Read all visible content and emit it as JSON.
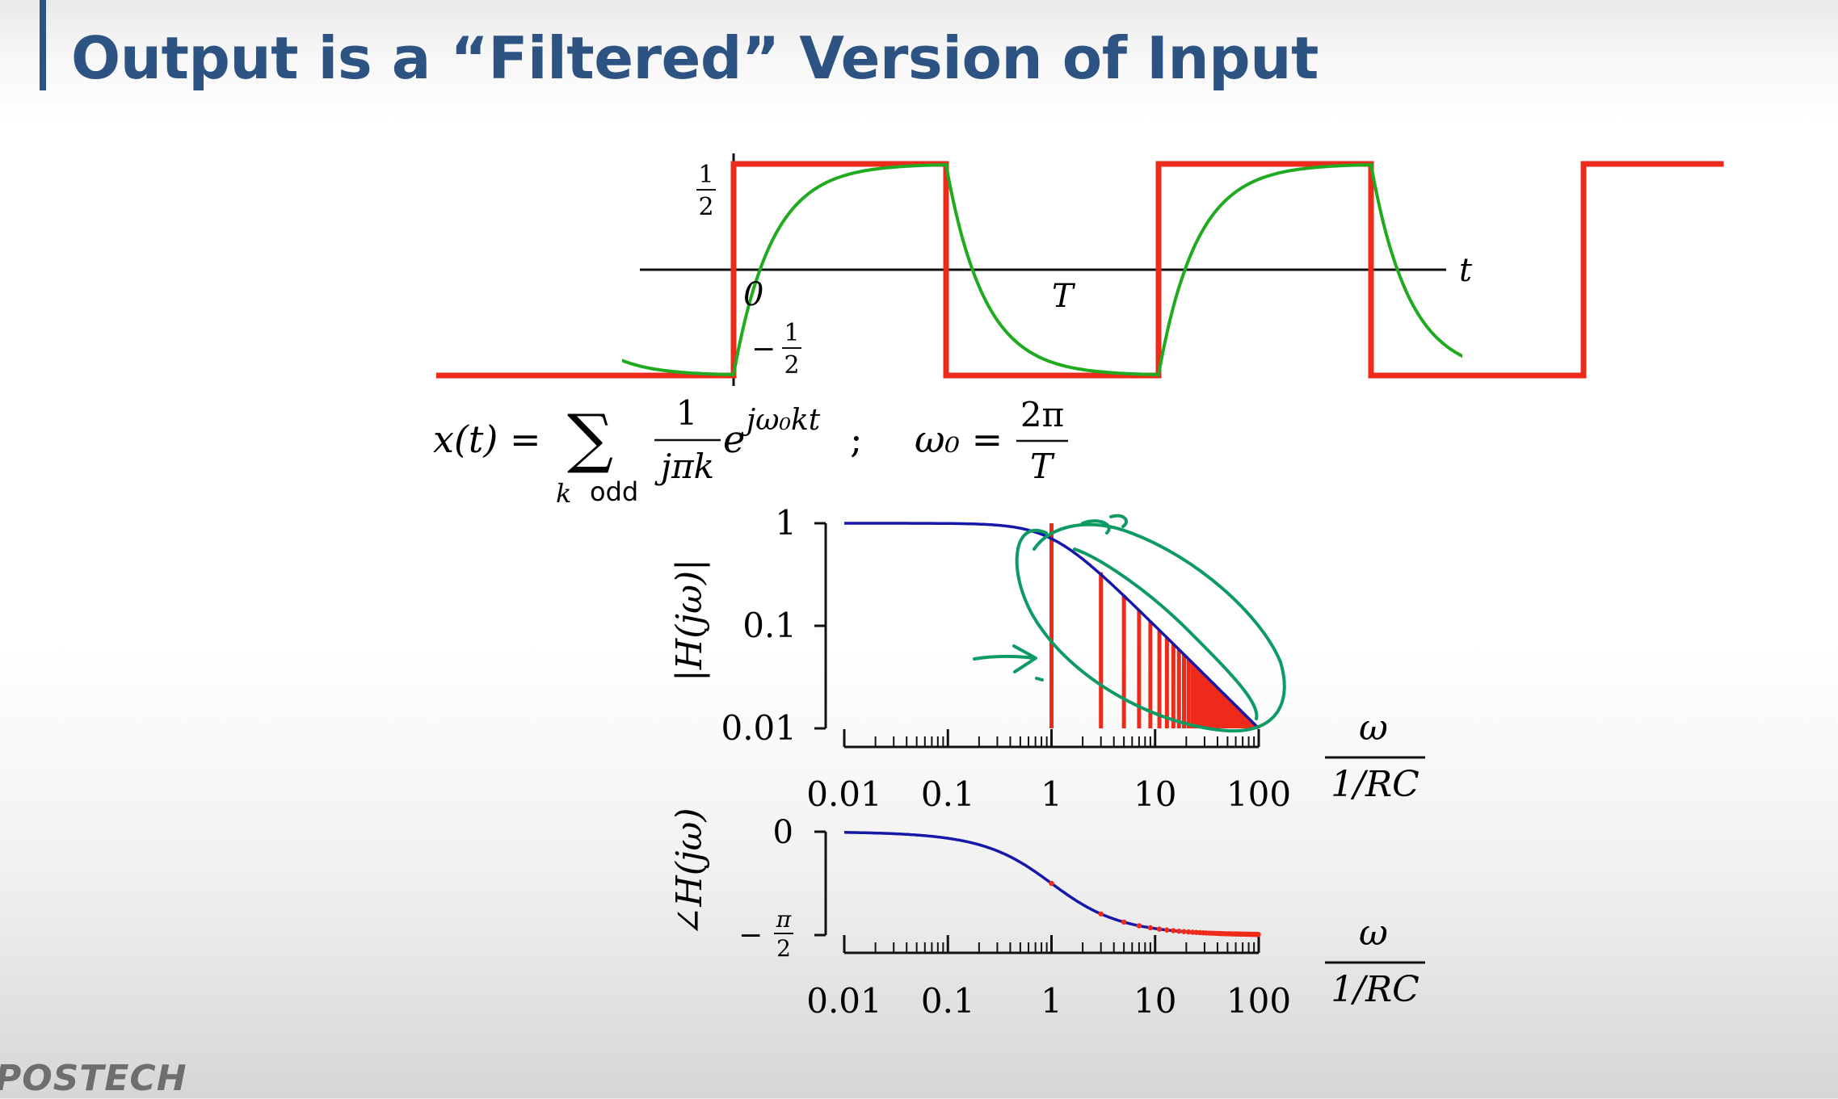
{
  "slide": {
    "title": "Output is a “Filtered” Version of Input",
    "logo": "POSTECH"
  },
  "colors": {
    "title": "#2d5383",
    "input_square_wave": "#ee2a1b",
    "output_wave": "#1faa1f",
    "response_curve": "#1717a8",
    "annotation": "#0e9a63",
    "axes": "#111111"
  },
  "waveform_plot": {
    "axis_label_t": "t",
    "tick_origin": "0",
    "tick_period": "T",
    "level_high": {
      "num": "1",
      "den": "2"
    },
    "level_low": {
      "sign": "−",
      "num": "1",
      "den": "2"
    },
    "input_high": 0.5,
    "input_low": -0.5
  },
  "equation": {
    "lhs": "x(t) =",
    "sum": "∑",
    "subscript_k": "k",
    "subscript_odd": "odd",
    "frac_num": "1",
    "frac_den": "jπk",
    "exp_base": "e",
    "exponent": "jω₀kt",
    "separator": ";",
    "omega_lhs": "ω₀ =",
    "omega_num": "2π",
    "omega_den": "T"
  },
  "chart_data": [
    {
      "type": "line",
      "ylabel": "|H(jω)|",
      "xlabel_num": "ω",
      "xlabel_den": "1/RC",
      "x_scale": "log",
      "y_scale": "log",
      "xlim": [
        0.01,
        100
      ],
      "ylim": [
        0.01,
        1
      ],
      "x_ticks": [
        "0.01",
        "0.1",
        "1",
        "10",
        "100"
      ],
      "y_ticks": [
        "1",
        "0.1",
        "0.01"
      ],
      "curve": "1/sqrt(1+x^2)",
      "harmonic_lines": {
        "first": 1,
        "step": 2,
        "last": 99,
        "magnitude": "1/k"
      }
    },
    {
      "type": "line",
      "ylabel": "∠H(jω)",
      "xlabel_num": "ω",
      "xlabel_den": "1/RC",
      "x_scale": "log",
      "xlim": [
        0.01,
        100
      ],
      "ylim": [
        -1.5708,
        0
      ],
      "x_ticks": [
        "0.01",
        "0.1",
        "1",
        "10",
        "100"
      ],
      "y_ticks": [
        {
          "label": "0"
        },
        {
          "sign": "−",
          "num": "π",
          "den": "2"
        }
      ],
      "curve": "-atan(x)",
      "harmonic_points": {
        "first": 1,
        "step": 2,
        "last": 99
      }
    }
  ]
}
